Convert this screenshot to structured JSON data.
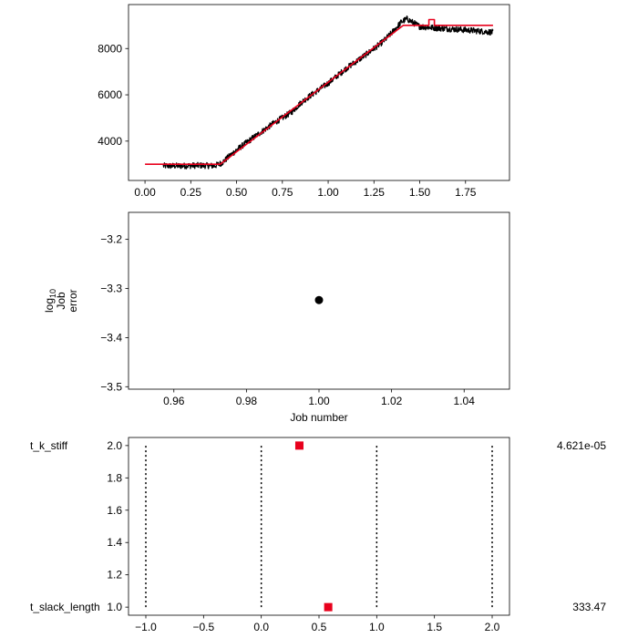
{
  "chart_data": [
    {
      "type": "line",
      "xlim": [
        -0.09,
        1.99
      ],
      "ylim": [
        2300,
        9900
      ],
      "xticks": [
        0.0,
        0.25,
        0.5,
        0.75,
        1.0,
        1.25,
        1.5,
        1.75
      ],
      "xtick_labels": [
        "0.00",
        "0.25",
        "0.50",
        "0.75",
        "1.00",
        "1.25",
        "1.50",
        "1.75"
      ],
      "yticks": [
        4000,
        6000,
        8000
      ],
      "ytick_labels": [
        "4000",
        "6000",
        "8000"
      ],
      "series": [
        {
          "color": "#000000",
          "noisy": true,
          "x": [
            0.1,
            0.2,
            0.3,
            0.38,
            0.42,
            0.5,
            0.6,
            0.7,
            0.8,
            0.85,
            0.9,
            1.0,
            1.1,
            1.2,
            1.3,
            1.35,
            1.4,
            1.43,
            1.5,
            1.6,
            1.7,
            1.8,
            1.9
          ],
          "y": [
            2930,
            2930,
            2950,
            2930,
            3060,
            3620,
            4200,
            4760,
            5250,
            5650,
            5950,
            6500,
            7150,
            7700,
            8300,
            8700,
            9150,
            9280,
            8950,
            8880,
            8830,
            8770,
            8700
          ]
        },
        {
          "color": "#e8001c",
          "noisy": false,
          "x": [
            0.0,
            0.1,
            0.41,
            1.41,
            1.55,
            1.55,
            1.58,
            1.58,
            1.9
          ],
          "y": [
            3000,
            3000,
            3000,
            9000,
            9000,
            9250,
            9250,
            9000,
            9000
          ]
        }
      ]
    },
    {
      "type": "scatter",
      "xlabel": "Job number",
      "ylabel_lines": [
        "log",
        "Job",
        "error"
      ],
      "ylabel_subscript": "10",
      "xlim": [
        0.9475,
        1.0525
      ],
      "ylim": [
        -3.505,
        -3.145
      ],
      "xticks": [
        0.96,
        0.98,
        1.0,
        1.02,
        1.04
      ],
      "xtick_labels": [
        "0.96",
        "0.98",
        "1.00",
        "1.02",
        "1.04"
      ],
      "yticks": [
        -3.2,
        -3.3,
        -3.4,
        -3.5
      ],
      "ytick_labels": [
        "−3.2",
        "−3.3",
        "−3.4",
        "−3.5"
      ],
      "points": [
        {
          "x": 1.0,
          "y": -3.3235,
          "color": "#000000"
        }
      ]
    },
    {
      "type": "scatter",
      "xlim": [
        -1.15,
        2.15
      ],
      "ylim": [
        0.95,
        2.05
      ],
      "xticks": [
        -1.0,
        -0.5,
        0.0,
        0.5,
        1.0,
        1.5,
        2.0
      ],
      "xtick_labels": [
        "−1.0",
        "−0.5",
        "0.0",
        "0.5",
        "1.0",
        "1.5",
        "2.0"
      ],
      "yticks": [
        1.0,
        1.2,
        1.4,
        1.6,
        1.8,
        2.0
      ],
      "ytick_labels": [
        "1.0",
        "1.2",
        "1.4",
        "1.6",
        "1.8",
        "2.0"
      ],
      "vlines": [
        -1.0,
        0.0,
        1.0,
        2.0
      ],
      "points": [
        {
          "x": 0.33,
          "y": 2.0,
          "color": "#e8001c"
        },
        {
          "x": 0.58,
          "y": 1.0,
          "color": "#e8001c"
        }
      ],
      "row_labels": [
        {
          "name": "t_k_stiff",
          "value": "4.621e-05",
          "y": 2.0
        },
        {
          "name": "t_slack_length",
          "value": "333.47",
          "y": 1.0
        }
      ]
    }
  ]
}
